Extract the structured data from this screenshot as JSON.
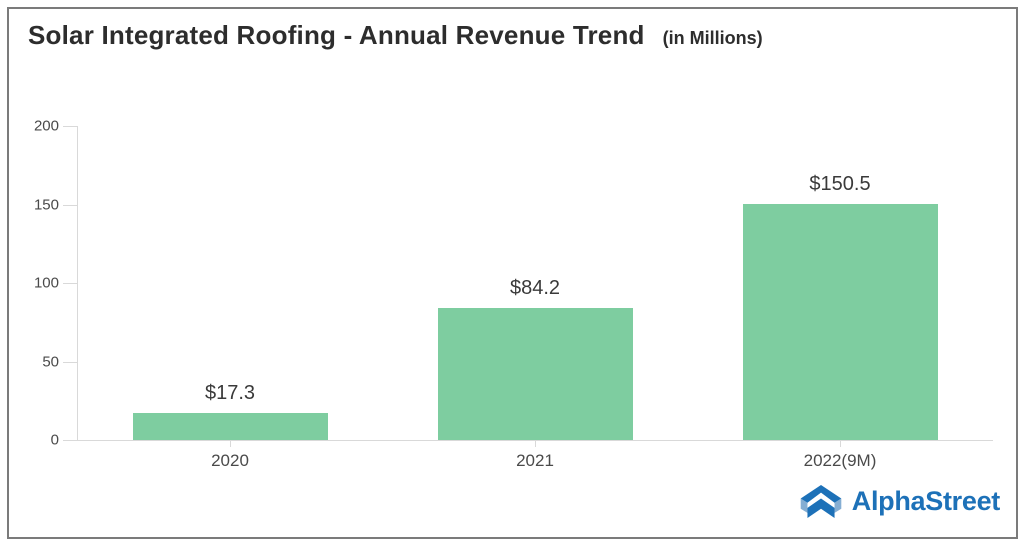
{
  "header": {
    "title": "Solar Integrated Roofing - Annual Revenue Trend",
    "units": "(in Millions)"
  },
  "chart_data": {
    "type": "bar",
    "title": "Solar Integrated Roofing - Annual Revenue Trend",
    "subtitle": "(in Millions)",
    "categories": [
      "2020",
      "2021",
      "2022(9M)"
    ],
    "values": [
      17.3,
      84.2,
      150.5
    ],
    "value_labels": [
      "$17.3",
      "$84.2",
      "$150.5"
    ],
    "xlabel": "",
    "ylabel": "",
    "ylim": [
      0,
      200
    ],
    "yticks": [
      0,
      50,
      100,
      150,
      200
    ],
    "grid": false,
    "legend": false,
    "bar_color": "#7ecda0"
  },
  "footer": {
    "logo_text": "AlphaStreet"
  },
  "colors": {
    "bar": "#7ecda0",
    "axis": "#d9d9d9",
    "border": "#7b7b7b",
    "title": "#2d2d2d",
    "tick_label": "#4a4a4a",
    "value_label": "#3a3a3a",
    "logo_blue": "#1d71b8",
    "logo_light_blue": "#85aed3"
  }
}
